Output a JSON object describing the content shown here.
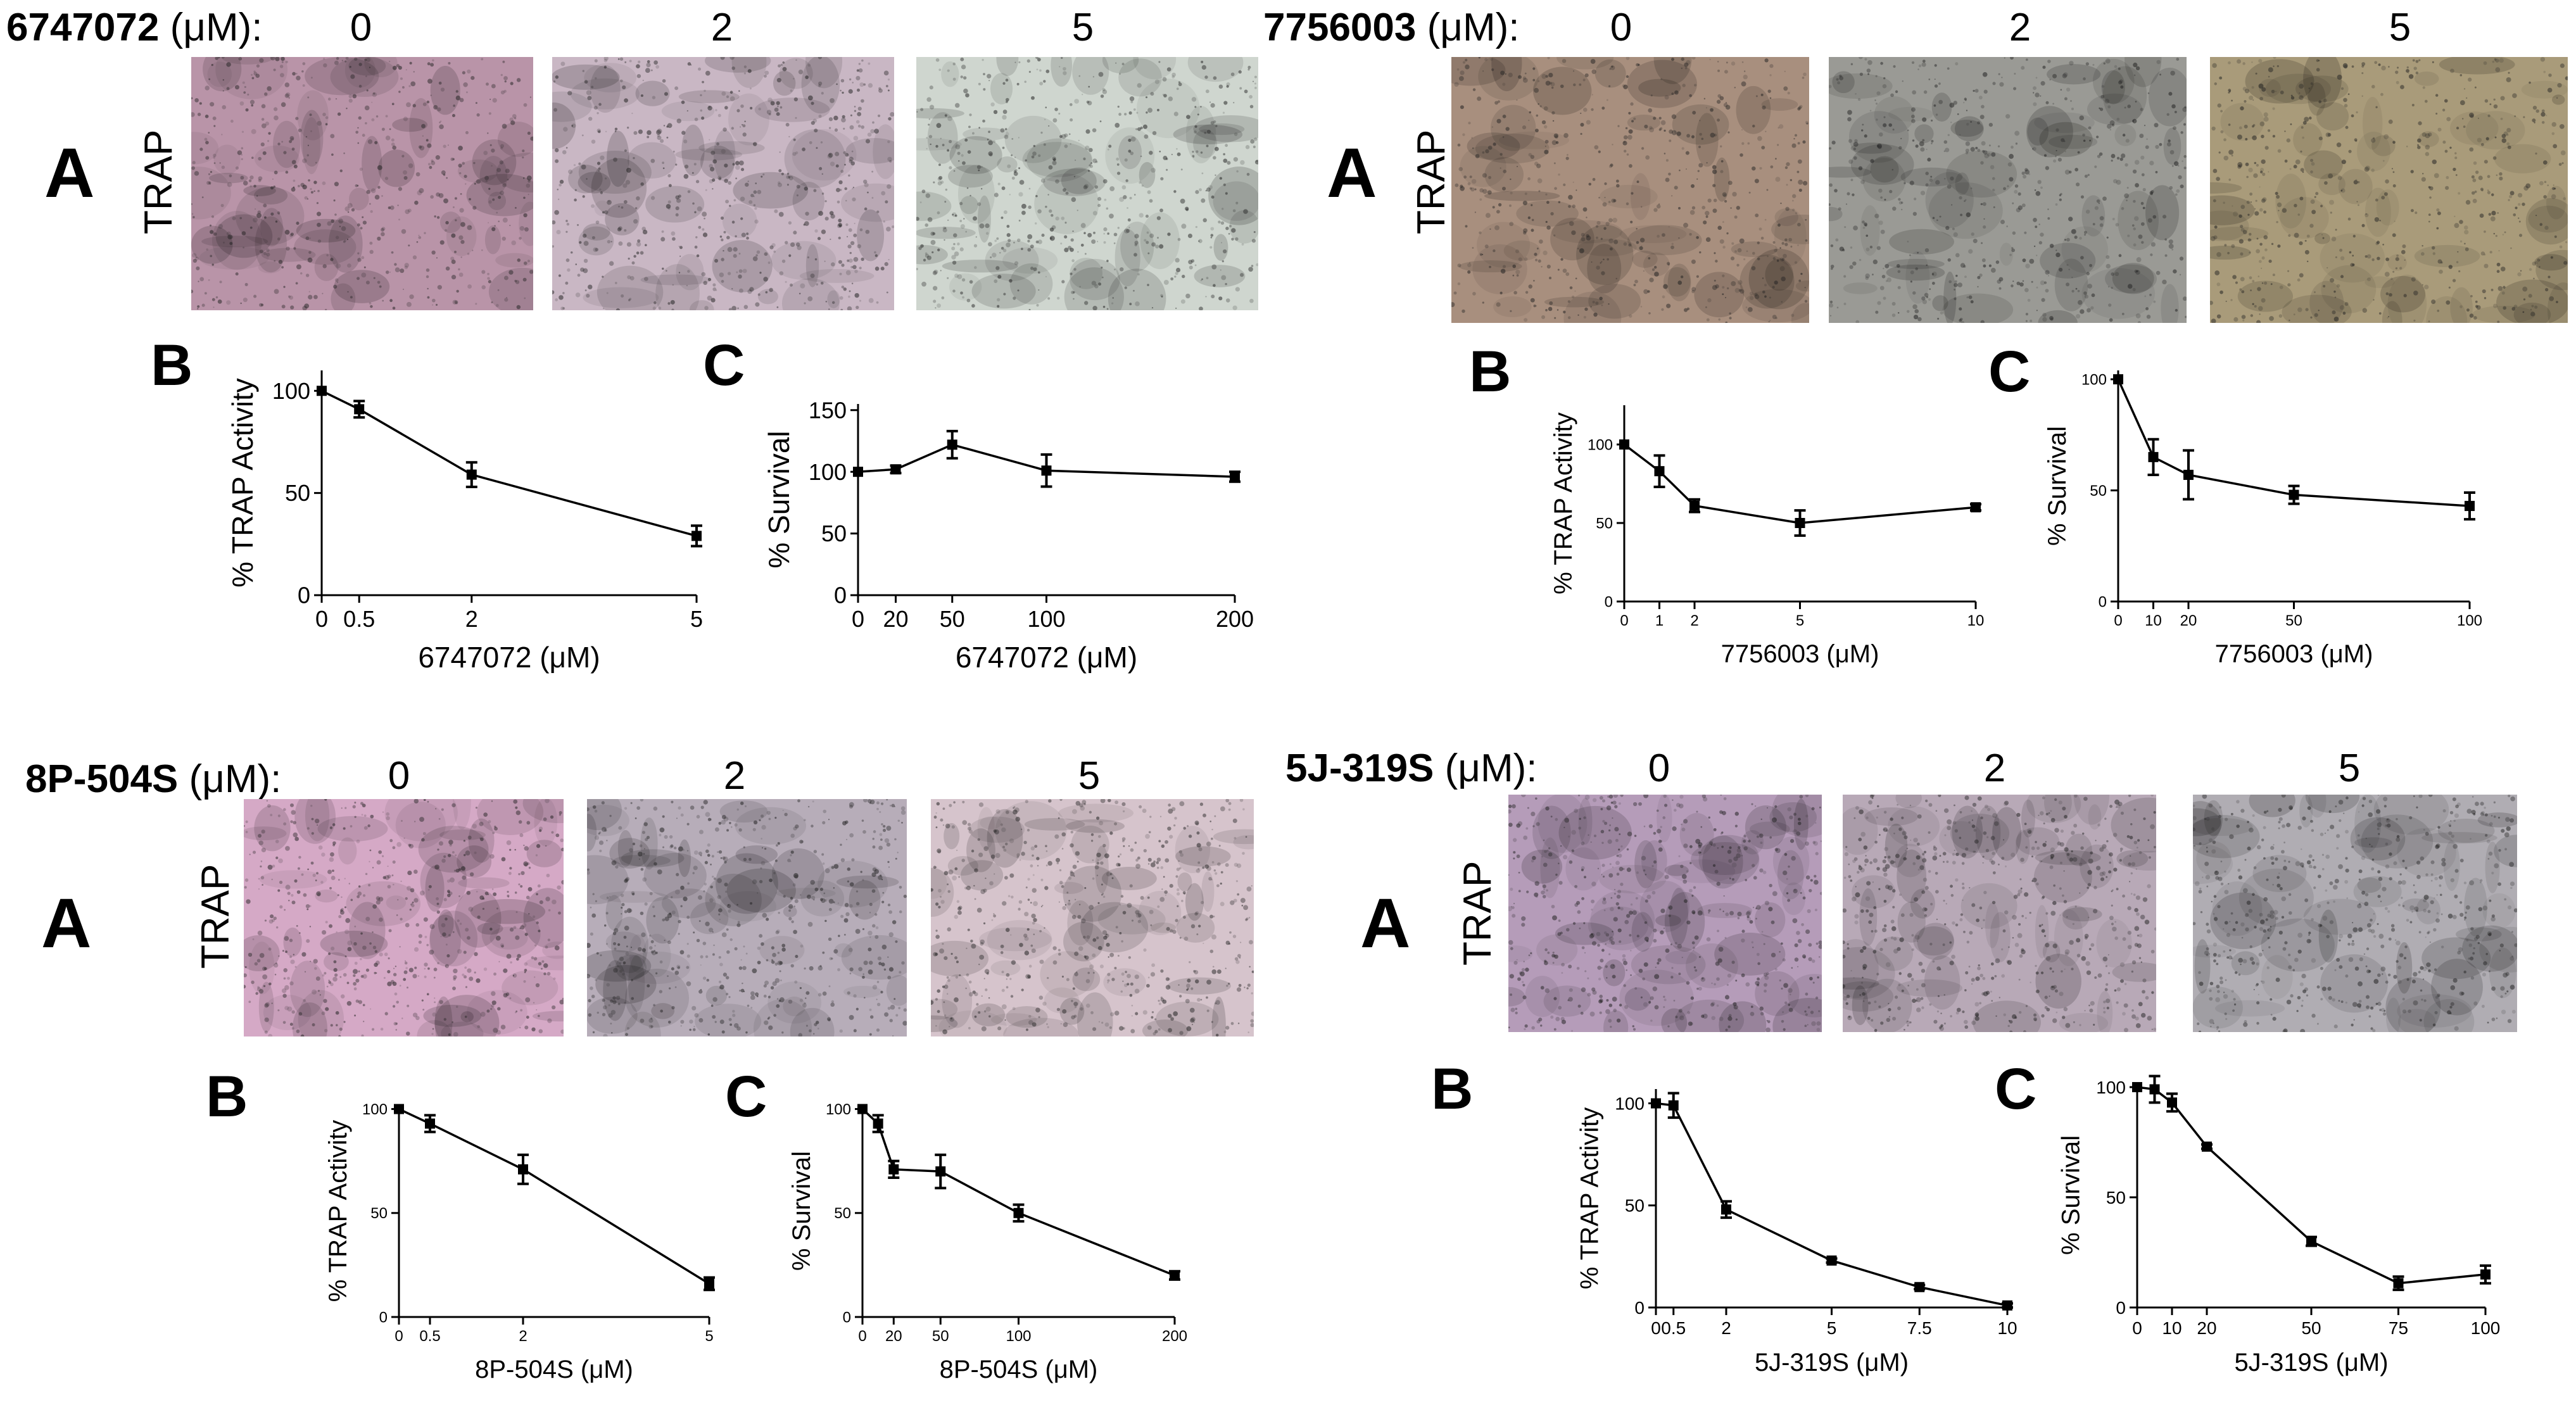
{
  "panels": [
    {
      "compound": "6747072",
      "unit": " (μM):",
      "concs": [
        "0",
        "2",
        "5"
      ],
      "label_a": "A",
      "trap_label": "TRAP",
      "label_b": "B",
      "label_c": "C",
      "image_tints": [
        "#b994a8",
        "#c9b7c4",
        "#cfd6cf"
      ]
    },
    {
      "compound": "7756003",
      "unit": " (μM):",
      "concs": [
        "0",
        "2",
        "5"
      ],
      "label_a": "A",
      "trap_label": "TRAP",
      "label_b": "B",
      "label_c": "C",
      "image_tints": [
        "#a88f7e",
        "#9a9a95",
        "#a99b7a"
      ]
    },
    {
      "compound": "8P-504S",
      "unit": " (μM):",
      "concs": [
        "0",
        "2",
        "5"
      ],
      "label_a": "A",
      "trap_label": "TRAP",
      "label_b": "B",
      "label_c": "C",
      "image_tints": [
        "#d5a9c6",
        "#b7adb9",
        "#d6c4cc"
      ]
    },
    {
      "compound": "5J-319S",
      "unit": " (μM):",
      "concs": [
        "0",
        "2",
        "5"
      ],
      "label_a": "A",
      "trap_label": "TRAP",
      "label_b": "B",
      "label_c": "C",
      "image_tints": [
        "#b59cb9",
        "#b8a9b7",
        "#b0adb3"
      ]
    }
  ],
  "chart_data": [
    {
      "type": "line",
      "panel": "6747072 B",
      "xlabel": "6747072 (μM)",
      "ylabel": "% TRAP Activity",
      "x": [
        0,
        0.5,
        2,
        5
      ],
      "y": [
        100,
        91,
        59,
        29
      ],
      "err": [
        0,
        4,
        6,
        5
      ],
      "xticks": [
        "0",
        "0.5",
        "2",
        "5"
      ],
      "yticks": [
        "0",
        "50",
        "100"
      ],
      "xlim": [
        0,
        5
      ],
      "ylim": [
        0,
        110
      ]
    },
    {
      "type": "line",
      "panel": "6747072 C",
      "xlabel": "6747072 (μM)",
      "ylabel": "% Survival",
      "x": [
        0,
        20,
        50,
        100,
        200
      ],
      "y": [
        100,
        102,
        122,
        101,
        96
      ],
      "err": [
        0,
        3,
        11,
        13,
        4
      ],
      "xticks": [
        "0",
        "20",
        "50",
        "100",
        "200"
      ],
      "yticks": [
        "0",
        "50",
        "100",
        "150"
      ],
      "xlim": [
        0,
        200
      ],
      "ylim": [
        0,
        155
      ]
    },
    {
      "type": "line",
      "panel": "7756003 B",
      "xlabel": "7756003 (μM)",
      "ylabel": "% TRAP Activity",
      "x": [
        0,
        1,
        2,
        5,
        10
      ],
      "y": [
        100,
        83,
        61,
        50,
        60
      ],
      "err": [
        0,
        10,
        4,
        8,
        2
      ],
      "xticks": [
        "0",
        "1",
        "2",
        "5",
        "10"
      ],
      "yticks": [
        "0",
        "50",
        "100"
      ],
      "xlim": [
        0,
        10
      ],
      "ylim": [
        0,
        125
      ]
    },
    {
      "type": "line",
      "panel": "7756003 C",
      "xlabel": "7756003 (μM)",
      "ylabel": "% Survival",
      "x": [
        0,
        10,
        20,
        50,
        100
      ],
      "y": [
        100,
        65,
        57,
        48,
        43
      ],
      "err": [
        0,
        8,
        11,
        4,
        6
      ],
      "xticks": [
        "0",
        "10",
        "20",
        "50",
        "100"
      ],
      "yticks": [
        "0",
        "50",
        "100"
      ],
      "xlim": [
        0,
        100
      ],
      "ylim": [
        0,
        104
      ]
    },
    {
      "type": "line",
      "panel": "8P-504S B",
      "xlabel": "8P-504S (μM)",
      "ylabel": "% TRAP Activity",
      "x": [
        0,
        0.5,
        2,
        5
      ],
      "y": [
        100,
        93,
        71,
        16
      ],
      "err": [
        0,
        4,
        7,
        3
      ],
      "xticks": [
        "0",
        "0.5",
        "2",
        "5"
      ],
      "yticks": [
        "0",
        "50",
        "100"
      ],
      "xlim": [
        0,
        5
      ],
      "ylim": [
        0,
        102
      ]
    },
    {
      "type": "line",
      "panel": "8P-504S C",
      "xlabel": "8P-504S (μM)",
      "ylabel": "% Survival",
      "x": [
        0,
        10,
        20,
        50,
        100,
        200
      ],
      "y": [
        100,
        93,
        71,
        70,
        50,
        20
      ],
      "err": [
        0,
        4,
        4,
        8,
        4,
        2
      ],
      "xticks": [
        "0",
        "20",
        "50",
        "100",
        "200"
      ],
      "yticks": [
        "0",
        "50",
        "100"
      ],
      "xlim": [
        0,
        200
      ],
      "ylim": [
        0,
        102
      ]
    },
    {
      "type": "line",
      "panel": "5J-319S B",
      "xlabel": "5J-319S (μM)",
      "ylabel": "% TRAP Activity",
      "x": [
        0,
        0.5,
        2,
        5,
        7.5,
        10
      ],
      "y": [
        100,
        99,
        48,
        23,
        10,
        1
      ],
      "err": [
        0,
        6,
        4,
        1,
        1,
        1
      ],
      "xticks": [
        "0",
        "0.5",
        "2",
        "5",
        "7.5",
        "10"
      ],
      "yticks": [
        "0",
        "50",
        "100"
      ],
      "xlim": [
        0,
        10
      ],
      "ylim": [
        0,
        107
      ]
    },
    {
      "type": "line",
      "panel": "5J-319S C",
      "xlabel": "5J-319S (μM)",
      "ylabel": "% Survival",
      "x": [
        0,
        5,
        10,
        20,
        50,
        75,
        100
      ],
      "y": [
        100,
        99,
        93,
        73,
        30,
        11,
        15
      ],
      "err": [
        0,
        6,
        4,
        1,
        2,
        3,
        4
      ],
      "xticks": [
        "0",
        "10",
        "20",
        "50",
        "75",
        "100"
      ],
      "yticks": [
        "0",
        "50",
        "100"
      ],
      "xlim": [
        0,
        100
      ],
      "ylim": [
        0,
        102
      ]
    }
  ]
}
